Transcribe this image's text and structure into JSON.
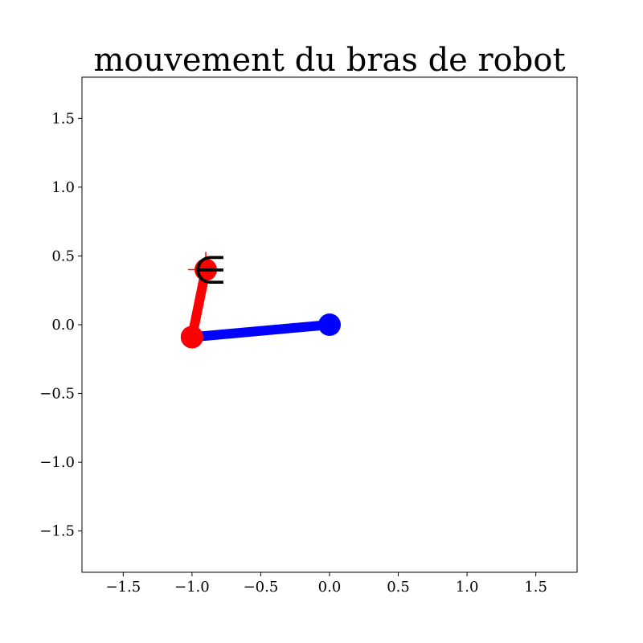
{
  "chart_data": {
    "type": "line",
    "title": "mouvement du bras de robot",
    "xlabel": "",
    "ylabel": "",
    "xlim": [
      -1.8,
      1.8
    ],
    "ylim": [
      -1.8,
      1.8
    ],
    "grid": false,
    "xticks": [
      -1.5,
      -1.0,
      -0.5,
      0.0,
      0.5,
      1.0,
      1.5
    ],
    "yticks": [
      -1.5,
      -1.0,
      -0.5,
      0.0,
      0.5,
      1.0,
      1.5
    ],
    "xtick_labels": [
      "−1.5",
      "−1.0",
      "−0.5",
      "0.0",
      "0.5",
      "1.0",
      "1.5"
    ],
    "ytick_labels": [
      "−1.5",
      "−1.0",
      "−0.5",
      "0.0",
      "0.5",
      "1.0",
      "1.5"
    ],
    "series": [
      {
        "color": "#0000ff",
        "x": [
          0.0,
          -1.0
        ],
        "y": [
          0.0,
          -0.09
        ]
      },
      {
        "color": "#ff0000",
        "x": [
          -1.0,
          -0.9
        ],
        "y": [
          -0.09,
          0.4
        ]
      }
    ],
    "target": {
      "x": -0.9,
      "y": 0.4,
      "color": "#ff0000"
    },
    "annotation": {
      "text": "∈",
      "x": -0.87,
      "y": 0.4
    }
  }
}
